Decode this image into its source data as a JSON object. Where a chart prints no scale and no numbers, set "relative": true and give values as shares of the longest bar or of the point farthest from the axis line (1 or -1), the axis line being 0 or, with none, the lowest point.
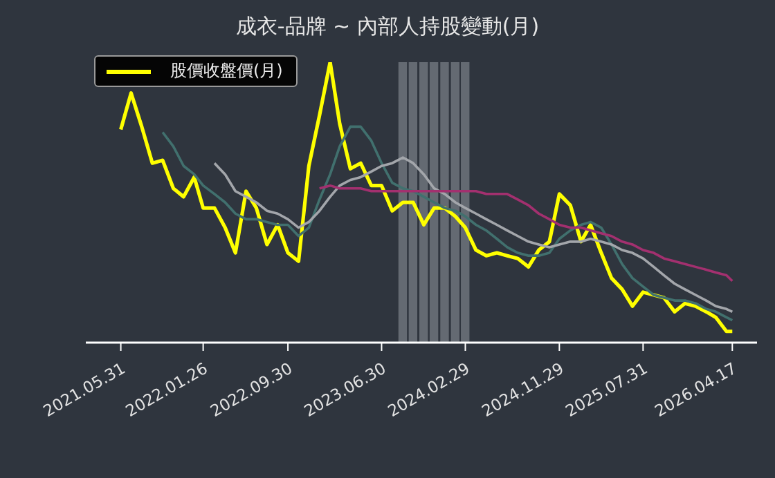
{
  "chart_data": {
    "type": "line",
    "title": "成衣-品牌 ~ 內部人持股變動(月)",
    "relative": true,
    "x": [
      "2021-05-31",
      "2021-06-30",
      "2021-07-31",
      "2021-08-31",
      "2021-09-30",
      "2021-10-31",
      "2021-11-30",
      "2021-12-31",
      "2022-01-26",
      "2022-02-28",
      "2022-03-31",
      "2022-04-30",
      "2022-05-31",
      "2022-06-30",
      "2022-07-31",
      "2022-08-31",
      "2022-09-30",
      "2022-10-31",
      "2022-11-30",
      "2022-12-31",
      "2023-01-31",
      "2023-02-28",
      "2023-03-31",
      "2023-04-30",
      "2023-05-31",
      "2023-06-30",
      "2023-07-31",
      "2023-08-31",
      "2023-09-30",
      "2023-10-31",
      "2023-11-30",
      "2023-12-31",
      "2024-01-31",
      "2024-02-29",
      "2024-03-31",
      "2024-04-30",
      "2024-05-31",
      "2024-06-30",
      "2024-07-31",
      "2024-08-31",
      "2024-09-30",
      "2024-10-31",
      "2024-11-29",
      "2024-12-31",
      "2025-01-31",
      "2025-02-28",
      "2025-03-31",
      "2025-04-30",
      "2025-05-31",
      "2025-06-30",
      "2025-07-31",
      "2025-08-31",
      "2025-09-30",
      "2025-10-31",
      "2025-11-30",
      "2025-12-31",
      "2026-01-31",
      "2026-02-28",
      "2026-03-31",
      "2026-04-17"
    ],
    "xlim": [
      "2021-02-18",
      "2026-06-28"
    ],
    "xticks": [
      {
        "value": "2021-05-31",
        "label": "2021.05.31"
      },
      {
        "value": "2022-01-26",
        "label": "2022.01.26"
      },
      {
        "value": "2022-09-30",
        "label": "2022.09.30"
      },
      {
        "value": "2023-06-30",
        "label": "2023.06.30"
      },
      {
        "value": "2024-02-29",
        "label": "2024.02.29"
      },
      {
        "value": "2024-11-29",
        "label": "2024.11.29"
      },
      {
        "value": "2025-07-31",
        "label": "2025.07.31"
      },
      {
        "value": "2026-04-17",
        "label": "2026.04.17"
      }
    ],
    "series": [
      {
        "name": "股價收盤價(月)",
        "color": "#ffff00",
        "values": [
          0.76,
          0.89,
          0.77,
          0.64,
          0.65,
          0.55,
          0.52,
          0.59,
          0.48,
          0.48,
          0.41,
          0.32,
          0.54,
          0.48,
          0.35,
          0.42,
          0.32,
          0.29,
          0.63,
          0.81,
          1.0,
          0.78,
          0.62,
          0.64,
          0.56,
          0.56,
          0.47,
          0.5,
          0.5,
          0.42,
          0.48,
          0.48,
          0.45,
          0.41,
          0.33,
          0.31,
          0.32,
          0.31,
          0.3,
          0.27,
          0.33,
          0.36,
          0.53,
          0.49,
          0.36,
          0.42,
          0.32,
          0.23,
          0.19,
          0.13,
          0.18,
          0.17,
          0.16,
          0.11,
          0.14,
          0.13,
          0.11,
          0.09,
          0.04,
          0.04
        ]
      },
      {
        "color": "#41706e",
        "values": [
          null,
          null,
          null,
          null,
          0.75,
          0.7,
          0.63,
          0.6,
          0.56,
          0.53,
          0.5,
          0.46,
          0.44,
          0.44,
          0.43,
          0.42,
          0.42,
          0.38,
          0.41,
          0.51,
          0.6,
          0.7,
          0.77,
          0.77,
          0.72,
          0.64,
          0.57,
          0.55,
          0.54,
          0.52,
          0.5,
          0.48,
          0.47,
          0.45,
          0.42,
          0.4,
          0.37,
          0.34,
          0.32,
          0.31,
          0.31,
          0.32,
          0.37,
          0.4,
          0.42,
          0.43,
          0.41,
          0.35,
          0.28,
          0.23,
          0.2,
          0.17,
          0.16,
          0.15,
          0.15,
          0.14,
          0.12,
          0.11,
          0.09,
          0.08
        ]
      },
      {
        "color": "#a3a6ab",
        "values": [
          null,
          null,
          null,
          null,
          null,
          null,
          null,
          null,
          null,
          0.64,
          0.6,
          0.54,
          0.52,
          0.5,
          0.47,
          0.46,
          0.44,
          0.41,
          0.43,
          0.47,
          0.52,
          0.56,
          0.58,
          0.59,
          0.61,
          0.63,
          0.64,
          0.66,
          0.64,
          0.6,
          0.55,
          0.53,
          0.5,
          0.48,
          0.46,
          0.44,
          0.42,
          0.4,
          0.38,
          0.36,
          0.35,
          0.34,
          0.35,
          0.36,
          0.36,
          0.37,
          0.36,
          0.35,
          0.33,
          0.32,
          0.3,
          0.27,
          0.24,
          0.21,
          0.19,
          0.17,
          0.15,
          0.13,
          0.12,
          0.11
        ]
      },
      {
        "color": "#a3306f",
        "values": [
          null,
          null,
          null,
          null,
          null,
          null,
          null,
          null,
          null,
          null,
          null,
          null,
          null,
          null,
          null,
          null,
          null,
          null,
          null,
          0.55,
          0.56,
          0.55,
          0.55,
          0.55,
          0.54,
          0.54,
          0.54,
          0.54,
          0.54,
          0.54,
          0.54,
          0.54,
          0.54,
          0.54,
          0.54,
          0.53,
          0.53,
          0.53,
          0.51,
          0.49,
          0.46,
          0.44,
          0.42,
          0.41,
          0.41,
          0.4,
          0.39,
          0.38,
          0.36,
          0.35,
          0.33,
          0.32,
          0.3,
          0.29,
          0.28,
          0.27,
          0.26,
          0.25,
          0.24,
          0.22
        ]
      }
    ],
    "bands": [
      {
        "axis": "x",
        "from": "2023-08-18",
        "to": "2023-09-12",
        "color": "#6d737b"
      },
      {
        "axis": "x",
        "from": "2023-09-17",
        "to": "2023-10-12",
        "color": "#6d737b"
      },
      {
        "axis": "x",
        "from": "2023-10-18",
        "to": "2023-11-12",
        "color": "#6d737b"
      },
      {
        "axis": "x",
        "from": "2023-11-17",
        "to": "2023-12-12",
        "color": "#6d737b"
      },
      {
        "axis": "x",
        "from": "2023-12-18",
        "to": "2024-01-12",
        "color": "#6d737b"
      },
      {
        "axis": "x",
        "from": "2024-01-18",
        "to": "2024-02-12",
        "color": "#6d737b"
      },
      {
        "axis": "x",
        "from": "2024-02-16",
        "to": "2024-03-12",
        "color": "#6d737b"
      }
    ],
    "legend": "top left",
    "grid": false
  }
}
